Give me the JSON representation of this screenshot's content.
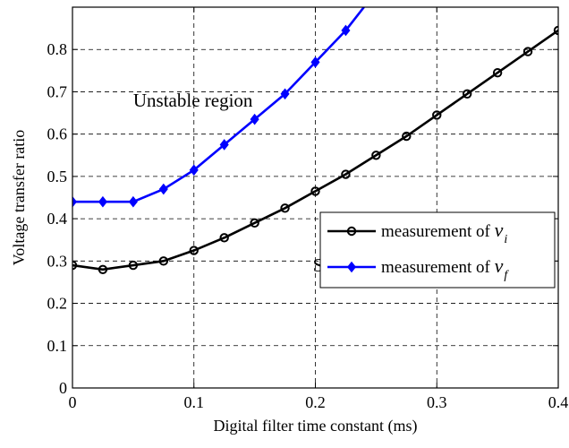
{
  "chart_data": {
    "type": "line",
    "title": "",
    "xlabel": "Digital filter time constant (ms)",
    "ylabel": "Voltage transfer ratio",
    "xlim": [
      0,
      0.4
    ],
    "ylim": [
      0,
      0.9
    ],
    "xticks": [
      0,
      0.1,
      0.2,
      0.3,
      0.4
    ],
    "xtick_labels": [
      "0",
      "0.1",
      "0.2",
      "0.3",
      "0.4"
    ],
    "yticks": [
      0,
      0.1,
      0.2,
      0.3,
      0.4,
      0.5,
      0.6,
      0.7,
      0.8
    ],
    "ytick_labels": [
      "0",
      "0.1",
      "0.2",
      "0.3",
      "0.4",
      "0.5",
      "0.6",
      "0.7",
      "0.8"
    ],
    "grid": true,
    "legend_position": "center-right",
    "series": [
      {
        "name_prefix": "measurement of",
        "name_var": "v",
        "name_sub": "i",
        "color": "#000000",
        "marker": "circle",
        "x": [
          0,
          0.025,
          0.05,
          0.075,
          0.1,
          0.125,
          0.15,
          0.175,
          0.2,
          0.225,
          0.25,
          0.275,
          0.3,
          0.325,
          0.35,
          0.375,
          0.4
        ],
        "y": [
          0.29,
          0.28,
          0.29,
          0.3,
          0.325,
          0.355,
          0.39,
          0.425,
          0.465,
          0.505,
          0.55,
          0.595,
          0.645,
          0.695,
          0.745,
          0.795,
          0.845
        ]
      },
      {
        "name_prefix": "measurement of",
        "name_var": "v",
        "name_sub": "f",
        "color": "#0000ff",
        "marker": "diamond",
        "x": [
          0,
          0.025,
          0.05,
          0.075,
          0.1,
          0.125,
          0.15,
          0.175,
          0.2,
          0.225,
          0.24
        ],
        "y": [
          0.44,
          0.44,
          0.44,
          0.47,
          0.515,
          0.575,
          0.635,
          0.695,
          0.77,
          0.845,
          0.9
        ],
        "marker_count": 10
      }
    ],
    "annotations": [
      {
        "text": "Unstable region",
        "x": 0.05,
        "y": 0.665
      },
      {
        "text": "Stable region",
        "x": 0.198,
        "y": 0.275
      }
    ]
  }
}
